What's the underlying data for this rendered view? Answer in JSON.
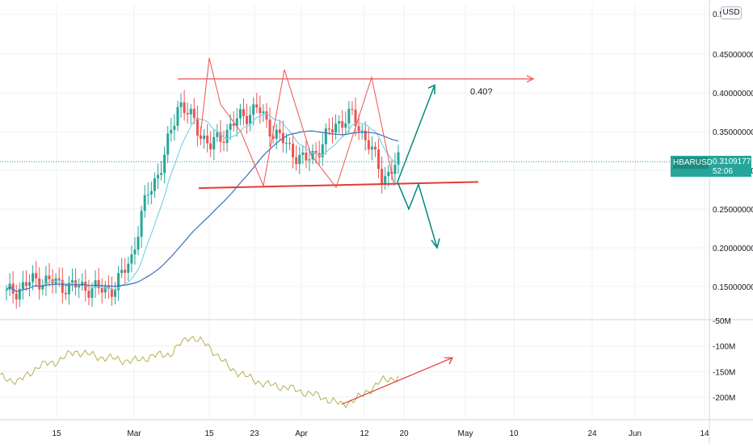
{
  "chart_data": [
    {
      "type": "line",
      "title": "",
      "symbol": "HBARUSD",
      "currency": "USD",
      "last_price": "0.31091773",
      "countdown": "52:06",
      "y_ticks": [
        "0.5",
        "0.45000000",
        "0.40000000",
        "0.35000000",
        "0.30000000",
        "0.25000000",
        "0.20000000",
        "0.15000000"
      ],
      "ylim": [
        0.1,
        0.51
      ],
      "x_ticks": [
        "15",
        "Mar",
        "15",
        "23",
        "Apr",
        "12",
        "20",
        "May",
        "10",
        "24",
        "Jun",
        "14"
      ],
      "annotations": [
        "0.40?"
      ],
      "series": [
        {
          "values": [
            0.14,
            0.15,
            0.16,
            0.155,
            0.15,
            0.15,
            0.145,
            0.15,
            0.19,
            0.27,
            0.31,
            0.39,
            0.36,
            0.33,
            0.35,
            0.37,
            0.38,
            0.35,
            0.33,
            0.31,
            0.33,
            0.36,
            0.37,
            0.34,
            0.29,
            0.31
          ]
        }
      ]
    },
    {
      "type": "line",
      "title": "",
      "y_ticks": [
        "-50M",
        "-100M",
        "-150M",
        "-200M"
      ],
      "ylim": [
        -230,
        -50
      ],
      "series": [
        {
          "values": [
            -160,
            -170,
            -140,
            -130,
            -110,
            -120,
            -125,
            -130,
            -120,
            -115,
            -80,
            -100,
            -140,
            -160,
            -175,
            -180,
            -190,
            -200,
            -215,
            -200,
            -170,
            -160
          ]
        }
      ]
    }
  ],
  "colors": {
    "up_candle": "#26a69a",
    "down_candle": "#ef5350",
    "ma_fast": "#7dd3e8",
    "ma_slow": "#3b6fb6",
    "resistance": "#f26d6d",
    "support": "#e53935",
    "pattern": "#ef5350",
    "projection": "#00897b",
    "obv": "#b5b050",
    "obv_trend": "#e53935",
    "price_tag": "#26a69a"
  }
}
